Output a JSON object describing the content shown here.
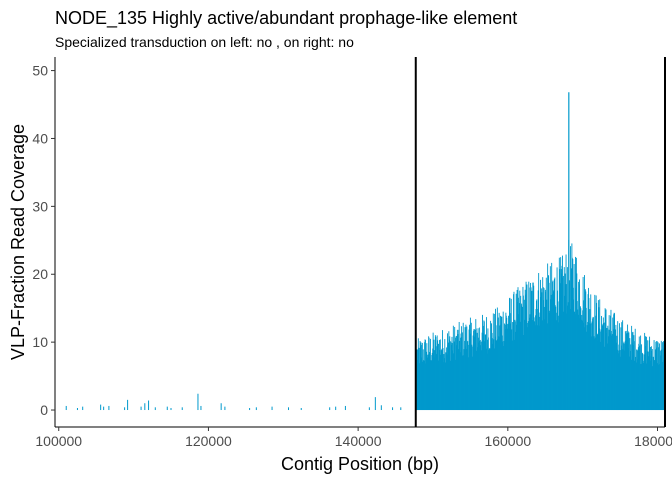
{
  "chart_data": {
    "type": "bar",
    "title": "NODE_135 Highly active/abundant prophage-like element",
    "subtitle": "Specialized transduction on left: no , on right: no",
    "xlabel": "Contig Position (bp)",
    "ylabel": "VLP-Fraction Read Coverage",
    "xlim": [
      99500,
      181000
    ],
    "ylim": [
      -2.5,
      52
    ],
    "x_ticks": [
      100000,
      120000,
      140000,
      160000,
      180000
    ],
    "x_tick_labels": [
      "100000",
      "120000",
      "140000",
      "160000",
      "180000"
    ],
    "y_ticks": [
      0,
      10,
      20,
      30,
      40,
      50
    ],
    "y_tick_labels": [
      "0",
      "10",
      "20",
      "30",
      "40",
      "50"
    ],
    "series_color": "#0099cc",
    "boundary_lines": [
      147700,
      181000
    ],
    "sparse_coverage": [
      [
        101000,
        0.6
      ],
      [
        102500,
        0.3
      ],
      [
        103200,
        0.5
      ],
      [
        105600,
        0.8
      ],
      [
        106000,
        0.5
      ],
      [
        106700,
        0.6
      ],
      [
        108800,
        0.4
      ],
      [
        109200,
        1.5
      ],
      [
        111000,
        0.5
      ],
      [
        111500,
        1.0
      ],
      [
        112000,
        1.4
      ],
      [
        112900,
        0.4
      ],
      [
        114500,
        0.5
      ],
      [
        115000,
        0.3
      ],
      [
        116500,
        0.4
      ],
      [
        118600,
        2.4
      ],
      [
        119000,
        0.6
      ],
      [
        121700,
        1.0
      ],
      [
        122200,
        0.5
      ],
      [
        125500,
        0.3
      ],
      [
        126400,
        0.4
      ],
      [
        128500,
        0.5
      ],
      [
        130700,
        0.4
      ],
      [
        132400,
        0.3
      ],
      [
        136200,
        0.4
      ],
      [
        137000,
        0.5
      ],
      [
        138300,
        0.6
      ],
      [
        141500,
        0.4
      ],
      [
        142300,
        1.9
      ],
      [
        143100,
        0.7
      ],
      [
        144600,
        0.4
      ],
      [
        145700,
        0.4
      ]
    ],
    "dense_region": {
      "start": 147800,
      "end": 180900,
      "peak_x": 168150,
      "peak_y": 46.8,
      "profile": [
        [
          147800,
          10
        ],
        [
          150000,
          11
        ],
        [
          155000,
          13
        ],
        [
          158000,
          14
        ],
        [
          160000,
          16
        ],
        [
          162000,
          18
        ],
        [
          164000,
          20
        ],
        [
          166000,
          21
        ],
        [
          167500,
          22
        ],
        [
          168100,
          24
        ],
        [
          169000,
          23
        ],
        [
          170000,
          20
        ],
        [
          172000,
          16
        ],
        [
          175000,
          13
        ],
        [
          178000,
          11
        ],
        [
          181000,
          10
        ]
      ]
    }
  }
}
